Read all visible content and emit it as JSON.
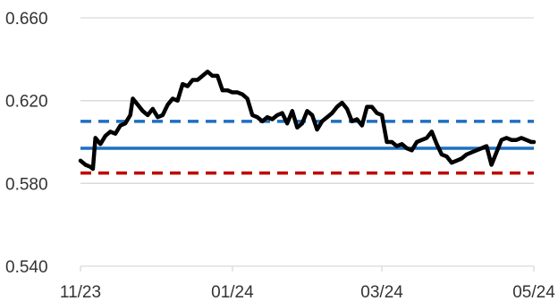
{
  "chart_data": {
    "type": "line",
    "title": "",
    "xlabel": "",
    "ylabel": "",
    "ylim": [
      0.54,
      0.66
    ],
    "xlim": [
      "2023-11-01",
      "2024-05-01"
    ],
    "grid": true,
    "y_ticks": [
      {
        "value": 0.54,
        "label": "0.540"
      },
      {
        "value": 0.58,
        "label": "0.580"
      },
      {
        "value": 0.62,
        "label": "0.620"
      },
      {
        "value": 0.66,
        "label": "0.660"
      }
    ],
    "x_ticks": [
      {
        "date": "2023-11-01",
        "label": "11/23"
      },
      {
        "date": "2024-01-01",
        "label": "01/24"
      },
      {
        "date": "2024-03-01",
        "label": "03/24"
      },
      {
        "date": "2024-05-01",
        "label": "05/24"
      }
    ],
    "series": [
      {
        "color": "#000000",
        "x": [
          "2023-11-01",
          "2023-11-03",
          "2023-11-05",
          "2023-11-06",
          "2023-11-07",
          "2023-11-09",
          "2023-11-11",
          "2023-11-13",
          "2023-11-15",
          "2023-11-17",
          "2023-11-19",
          "2023-11-21",
          "2023-11-22",
          "2023-11-24",
          "2023-11-26",
          "2023-11-28",
          "2023-11-30",
          "2023-12-02",
          "2023-12-04",
          "2023-12-06",
          "2023-12-08",
          "2023-12-10",
          "2023-12-12",
          "2023-12-14",
          "2023-12-16",
          "2023-12-18",
          "2023-12-20",
          "2023-12-22",
          "2023-12-24",
          "2023-12-26",
          "2023-12-28",
          "2023-12-30",
          "2024-01-01",
          "2024-01-03",
          "2024-01-05",
          "2024-01-07",
          "2024-01-09",
          "2024-01-11",
          "2024-01-13",
          "2024-01-15",
          "2024-01-17",
          "2024-01-19",
          "2024-01-21",
          "2024-01-23",
          "2024-01-25",
          "2024-01-27",
          "2024-01-29",
          "2024-01-31",
          "2024-02-02",
          "2024-02-04",
          "2024-02-06",
          "2024-02-08",
          "2024-02-10",
          "2024-02-12",
          "2024-02-14",
          "2024-02-16",
          "2024-02-18",
          "2024-02-20",
          "2024-02-22",
          "2024-02-24",
          "2024-02-26",
          "2024-02-28",
          "2024-03-01",
          "2024-03-03",
          "2024-03-05",
          "2024-03-07",
          "2024-03-09",
          "2024-03-11",
          "2024-03-13",
          "2024-03-15",
          "2024-03-17",
          "2024-03-19",
          "2024-03-21",
          "2024-03-23",
          "2024-03-25",
          "2024-03-27",
          "2024-03-29",
          "2024-03-31",
          "2024-04-02",
          "2024-04-04",
          "2024-04-06",
          "2024-04-08",
          "2024-04-10",
          "2024-04-12",
          "2024-04-14",
          "2024-04-16",
          "2024-04-18",
          "2024-04-20",
          "2024-04-22",
          "2024-04-24",
          "2024-04-26",
          "2024-04-28",
          "2024-04-30",
          "2024-05-01"
        ],
        "values": [
          0.591,
          0.589,
          0.588,
          0.587,
          0.602,
          0.599,
          0.603,
          0.605,
          0.604,
          0.608,
          0.609,
          0.613,
          0.621,
          0.618,
          0.615,
          0.613,
          0.616,
          0.612,
          0.613,
          0.618,
          0.621,
          0.62,
          0.628,
          0.627,
          0.63,
          0.63,
          0.632,
          0.634,
          0.632,
          0.632,
          0.625,
          0.625,
          0.624,
          0.624,
          0.623,
          0.621,
          0.613,
          0.612,
          0.61,
          0.612,
          0.611,
          0.613,
          0.614,
          0.609,
          0.615,
          0.607,
          0.609,
          0.615,
          0.613,
          0.606,
          0.61,
          0.612,
          0.614,
          0.617,
          0.619,
          0.616,
          0.61,
          0.611,
          0.608,
          0.617,
          0.617,
          0.614,
          0.613,
          0.6,
          0.6,
          0.598,
          0.599,
          0.597,
          0.596,
          0.6,
          0.601,
          0.602,
          0.605,
          0.599,
          0.594,
          0.593,
          0.59,
          0.591,
          0.592,
          0.594,
          0.595,
          0.596,
          0.597,
          0.598,
          0.589,
          0.595,
          0.601,
          0.602,
          0.601,
          0.601,
          0.602,
          0.601,
          0.6,
          0.6
        ]
      }
    ],
    "reference_lines": [
      {
        "value": 0.597,
        "color": "#1f6fbf",
        "style": "solid"
      },
      {
        "value": 0.61,
        "color": "#1f6fbf",
        "style": "dashed"
      },
      {
        "value": 0.585,
        "color": "#c00000",
        "style": "dashed"
      }
    ]
  }
}
